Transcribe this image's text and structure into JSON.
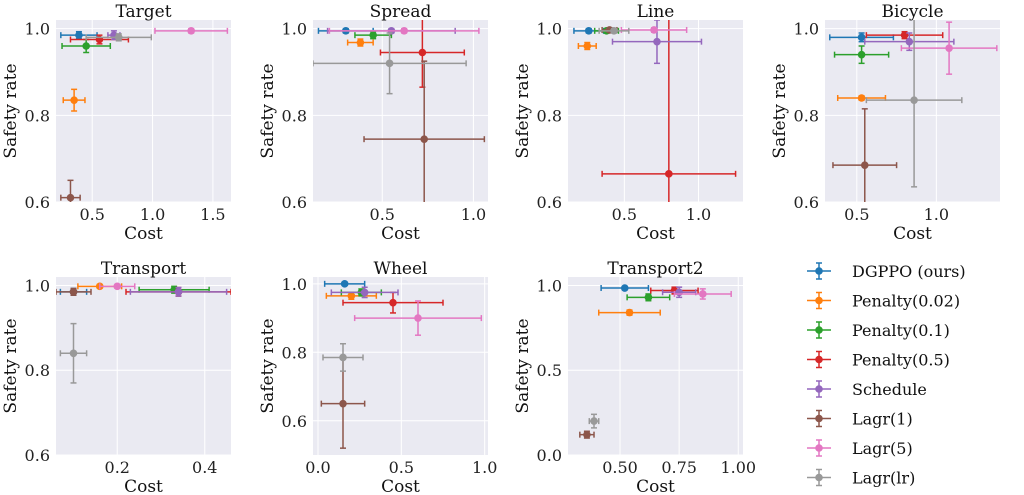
{
  "legend": [
    {
      "name": "DGPPO (ours)",
      "color": "#1f77b4"
    },
    {
      "name": "Penalty(0.02)",
      "color": "#ff7f0e"
    },
    {
      "name": "Penalty(0.1)",
      "color": "#2ca02c"
    },
    {
      "name": "Penalty(0.5)",
      "color": "#d62728"
    },
    {
      "name": "Schedule",
      "color": "#9467bd"
    },
    {
      "name": "Lagr(1)",
      "color": "#8c564b"
    },
    {
      "name": "Lagr(5)",
      "color": "#e377c2"
    },
    {
      "name": "Lagr(lr)",
      "color": "#999999"
    }
  ],
  "chart_data": [
    {
      "type": "scatter",
      "title": "Target",
      "xlabel": "Cost",
      "ylabel": "Safety rate",
      "xlim": [
        0.2,
        1.65
      ],
      "ylim": [
        0.6,
        1.02
      ],
      "xticks": [
        0.5,
        1.0,
        1.5
      ],
      "xtick_labels": [
        "0.5",
        "1.0",
        "1.5"
      ],
      "yticks": [
        0.6,
        0.8,
        1.0
      ],
      "ytick_labels": [
        "0.6",
        "0.8",
        "1.0"
      ],
      "points": [
        {
          "series": "DGPPO (ours)",
          "x": 0.39,
          "y": 0.985,
          "xerr": 0.15,
          "yerr": 0.008
        },
        {
          "series": "Penalty(0.02)",
          "x": 0.35,
          "y": 0.835,
          "xerr": 0.09,
          "yerr": 0.025
        },
        {
          "series": "Penalty(0.1)",
          "x": 0.45,
          "y": 0.96,
          "xerr": 0.2,
          "yerr": 0.015
        },
        {
          "series": "Penalty(0.5)",
          "x": 0.56,
          "y": 0.975,
          "xerr": 0.24,
          "yerr": 0.01
        },
        {
          "series": "Schedule",
          "x": 0.68,
          "y": 0.985,
          "xerr": 0.05,
          "yerr": 0.01
        },
        {
          "series": "Lagr(1)",
          "x": 0.32,
          "y": 0.61,
          "xerr": 0.08,
          "yerr": 0.04
        },
        {
          "series": "Lagr(5)",
          "x": 1.32,
          "y": 0.995,
          "xerr": 0.3,
          "yerr": 0.005
        },
        {
          "series": "Lagr(lr)",
          "x": 0.72,
          "y": 0.98,
          "xerr": 0.27,
          "yerr": 0.008
        }
      ]
    },
    {
      "type": "scatter",
      "title": "Spread",
      "xlabel": "Cost",
      "ylabel": "Safety rate",
      "xlim": [
        0.12,
        1.08
      ],
      "ylim": [
        0.6,
        1.02
      ],
      "xticks": [
        0.5,
        1.0
      ],
      "xtick_labels": [
        "0.5",
        "1.0"
      ],
      "yticks": [
        0.6,
        0.8,
        1.0
      ],
      "ytick_labels": [
        "0.6",
        "0.8",
        "1.0"
      ],
      "points": [
        {
          "series": "DGPPO (ours)",
          "x": 0.3,
          "y": 0.995,
          "xerr": 0.15,
          "yerr": 0.005
        },
        {
          "series": "Penalty(0.02)",
          "x": 0.38,
          "y": 0.968,
          "xerr": 0.07,
          "yerr": 0.008
        },
        {
          "series": "Penalty(0.1)",
          "x": 0.45,
          "y": 0.985,
          "xerr": 0.1,
          "yerr": 0.008
        },
        {
          "series": "Penalty(0.5)",
          "x": 0.72,
          "y": 0.945,
          "xerr": 0.23,
          "yerr": 0.08
        },
        {
          "series": "Schedule",
          "x": 0.55,
          "y": 0.995,
          "xerr": 0.35,
          "yerr": 0.005
        },
        {
          "series": "Lagr(1)",
          "x": 0.73,
          "y": 0.745,
          "xerr": 0.33,
          "yerr": 0.18
        },
        {
          "series": "Lagr(5)",
          "x": 0.62,
          "y": 0.995,
          "xerr": 0.41,
          "yerr": 0.005
        },
        {
          "series": "Lagr(lr)",
          "x": 0.54,
          "y": 0.92,
          "xerr": 0.42,
          "yerr": 0.07
        }
      ]
    },
    {
      "type": "scatter",
      "title": "Line",
      "xlabel": "Cost",
      "ylabel": "Safety rate",
      "xlim": [
        0.12,
        1.3
      ],
      "ylim": [
        0.6,
        1.02
      ],
      "xticks": [
        0.5,
        1.0
      ],
      "xtick_labels": [
        "0.5",
        "1.0"
      ],
      "yticks": [
        0.6,
        0.8,
        1.0
      ],
      "ytick_labels": [
        "0.6",
        "0.8",
        "1.0"
      ],
      "points": [
        {
          "series": "DGPPO (ours)",
          "x": 0.26,
          "y": 0.995,
          "xerr": 0.1,
          "yerr": 0.005
        },
        {
          "series": "Penalty(0.02)",
          "x": 0.25,
          "y": 0.96,
          "xerr": 0.06,
          "yerr": 0.008
        },
        {
          "series": "Penalty(0.1)",
          "x": 0.38,
          "y": 0.995,
          "xerr": 0.08,
          "yerr": 0.005
        },
        {
          "series": "Penalty(0.5)",
          "x": 0.8,
          "y": 0.665,
          "xerr": 0.45,
          "yerr": 0.4
        },
        {
          "series": "Schedule",
          "x": 0.72,
          "y": 0.97,
          "xerr": 0.3,
          "yerr": 0.05
        },
        {
          "series": "Lagr(1)",
          "x": 0.4,
          "y": 0.997,
          "xerr": 0.05,
          "yerr": 0.005
        },
        {
          "series": "Lagr(5)",
          "x": 0.7,
          "y": 0.997,
          "xerr": 0.22,
          "yerr": 0.005
        },
        {
          "series": "Lagr(lr)",
          "x": 0.43,
          "y": 0.995,
          "xerr": 0.1,
          "yerr": 0.005
        }
      ]
    },
    {
      "type": "scatter",
      "title": "Bicycle",
      "xlabel": "Cost",
      "ylabel": "Safety rate",
      "xlim": [
        0.3,
        1.4
      ],
      "ylim": [
        0.6,
        1.02
      ],
      "xticks": [
        0.5,
        1.0
      ],
      "xtick_labels": [
        "0.5",
        "1.0"
      ],
      "yticks": [
        0.6,
        0.8,
        1.0
      ],
      "ytick_labels": [
        "0.6",
        "0.8",
        "1.0"
      ],
      "points": [
        {
          "series": "DGPPO (ours)",
          "x": 0.53,
          "y": 0.98,
          "xerr": 0.2,
          "yerr": 0.01
        },
        {
          "series": "Penalty(0.02)",
          "x": 0.53,
          "y": 0.84,
          "xerr": 0.15,
          "yerr": 0.005
        },
        {
          "series": "Penalty(0.1)",
          "x": 0.53,
          "y": 0.94,
          "xerr": 0.17,
          "yerr": 0.02
        },
        {
          "series": "Penalty(0.5)",
          "x": 0.8,
          "y": 0.985,
          "xerr": 0.24,
          "yerr": 0.008
        },
        {
          "series": "Schedule",
          "x": 0.83,
          "y": 0.97,
          "xerr": 0.28,
          "yerr": 0.02
        },
        {
          "series": "Lagr(1)",
          "x": 0.55,
          "y": 0.685,
          "xerr": 0.2,
          "yerr": 0.13
        },
        {
          "series": "Lagr(5)",
          "x": 1.08,
          "y": 0.955,
          "xerr": 0.3,
          "yerr": 0.06
        },
        {
          "series": "Lagr(lr)",
          "x": 0.86,
          "y": 0.835,
          "xerr": 0.3,
          "yerr": 0.2
        }
      ]
    },
    {
      "type": "scatter",
      "title": "Transport",
      "xlabel": "Cost",
      "ylabel": "Safety rate",
      "xlim": [
        0.06,
        0.46
      ],
      "ylim": [
        0.6,
        1.02
      ],
      "xticks": [
        0.2,
        0.4
      ],
      "xtick_labels": [
        "0.2",
        "0.4"
      ],
      "yticks": [
        0.6,
        0.8,
        1.0
      ],
      "ytick_labels": [
        "0.6",
        "0.8",
        "1.0"
      ],
      "points": [
        {
          "series": "DGPPO (ours)",
          "x": 0.1,
          "y": 0.985,
          "xerr": 0.03,
          "yerr": 0.008
        },
        {
          "series": "Penalty(0.02)",
          "x": 0.16,
          "y": 0.998,
          "xerr": 0.05,
          "yerr": 0.004
        },
        {
          "series": "Penalty(0.1)",
          "x": 0.33,
          "y": 0.99,
          "xerr": 0.08,
          "yerr": 0.008
        },
        {
          "series": "Penalty(0.5)",
          "x": 0.34,
          "y": 0.985,
          "xerr": 0.12,
          "yerr": 0.01
        },
        {
          "series": "Schedule",
          "x": 0.34,
          "y": 0.985,
          "xerr": 0.11,
          "yerr": 0.01
        },
        {
          "series": "Lagr(1)",
          "x": 0.1,
          "y": 0.985,
          "xerr": 0.04,
          "yerr": 0.008
        },
        {
          "series": "Lagr(5)",
          "x": 0.2,
          "y": 0.998,
          "xerr": 0.04,
          "yerr": 0.004
        },
        {
          "series": "Lagr(lr)",
          "x": 0.1,
          "y": 0.84,
          "xerr": 0.03,
          "yerr": 0.07
        }
      ]
    },
    {
      "type": "scatter",
      "title": "Wheel",
      "xlabel": "Cost",
      "ylabel": "Safety rate",
      "xlim": [
        -0.03,
        1.02
      ],
      "ylim": [
        0.5,
        1.02
      ],
      "xticks": [
        0.0,
        0.5,
        1.0
      ],
      "xtick_labels": [
        "0.0",
        "0.5",
        "1.0"
      ],
      "yticks": [
        0.6,
        0.8,
        1.0
      ],
      "ytick_labels": [
        "0.6",
        "0.8",
        "1.0"
      ],
      "points": [
        {
          "series": "DGPPO (ours)",
          "x": 0.16,
          "y": 1.0,
          "xerr": 0.12,
          "yerr": 0.004
        },
        {
          "series": "Penalty(0.02)",
          "x": 0.2,
          "y": 0.965,
          "xerr": 0.15,
          "yerr": 0.01
        },
        {
          "series": "Penalty(0.1)",
          "x": 0.26,
          "y": 0.975,
          "xerr": 0.12,
          "yerr": 0.01
        },
        {
          "series": "Penalty(0.5)",
          "x": 0.45,
          "y": 0.945,
          "xerr": 0.3,
          "yerr": 0.03
        },
        {
          "series": "Schedule",
          "x": 0.28,
          "y": 0.975,
          "xerr": 0.2,
          "yerr": 0.015
        },
        {
          "series": "Lagr(1)",
          "x": 0.15,
          "y": 0.65,
          "xerr": 0.13,
          "yerr": 0.13
        },
        {
          "series": "Lagr(5)",
          "x": 0.6,
          "y": 0.9,
          "xerr": 0.38,
          "yerr": 0.05
        },
        {
          "series": "Lagr(lr)",
          "x": 0.15,
          "y": 0.785,
          "xerr": 0.12,
          "yerr": 0.04
        }
      ]
    },
    {
      "type": "scatter",
      "title": "Transport2",
      "xlabel": "Cost",
      "ylabel": "Safety rate",
      "xlim": [
        0.28,
        1.02
      ],
      "ylim": [
        0.0,
        1.05
      ],
      "xticks": [
        0.5,
        0.75,
        1.0
      ],
      "xtick_labels": [
        "0.50",
        "0.75",
        "1.00"
      ],
      "yticks": [
        0.0,
        0.5,
        1.0
      ],
      "ytick_labels": [
        "0.0",
        "0.5",
        "1.0"
      ],
      "points": [
        {
          "series": "DGPPO (ours)",
          "x": 0.52,
          "y": 0.985,
          "xerr": 0.1,
          "yerr": 0.01
        },
        {
          "series": "Penalty(0.02)",
          "x": 0.54,
          "y": 0.84,
          "xerr": 0.13,
          "yerr": 0.015
        },
        {
          "series": "Penalty(0.1)",
          "x": 0.62,
          "y": 0.93,
          "xerr": 0.09,
          "yerr": 0.02
        },
        {
          "series": "Penalty(0.5)",
          "x": 0.73,
          "y": 0.97,
          "xerr": 0.1,
          "yerr": 0.02
        },
        {
          "series": "Schedule",
          "x": 0.75,
          "y": 0.96,
          "xerr": 0.07,
          "yerr": 0.03
        },
        {
          "series": "Lagr(1)",
          "x": 0.36,
          "y": 0.12,
          "xerr": 0.03,
          "yerr": 0.02
        },
        {
          "series": "Lagr(5)",
          "x": 0.85,
          "y": 0.95,
          "xerr": 0.12,
          "yerr": 0.03
        },
        {
          "series": "Lagr(lr)",
          "x": 0.39,
          "y": 0.2,
          "xerr": 0.02,
          "yerr": 0.04
        }
      ]
    }
  ]
}
